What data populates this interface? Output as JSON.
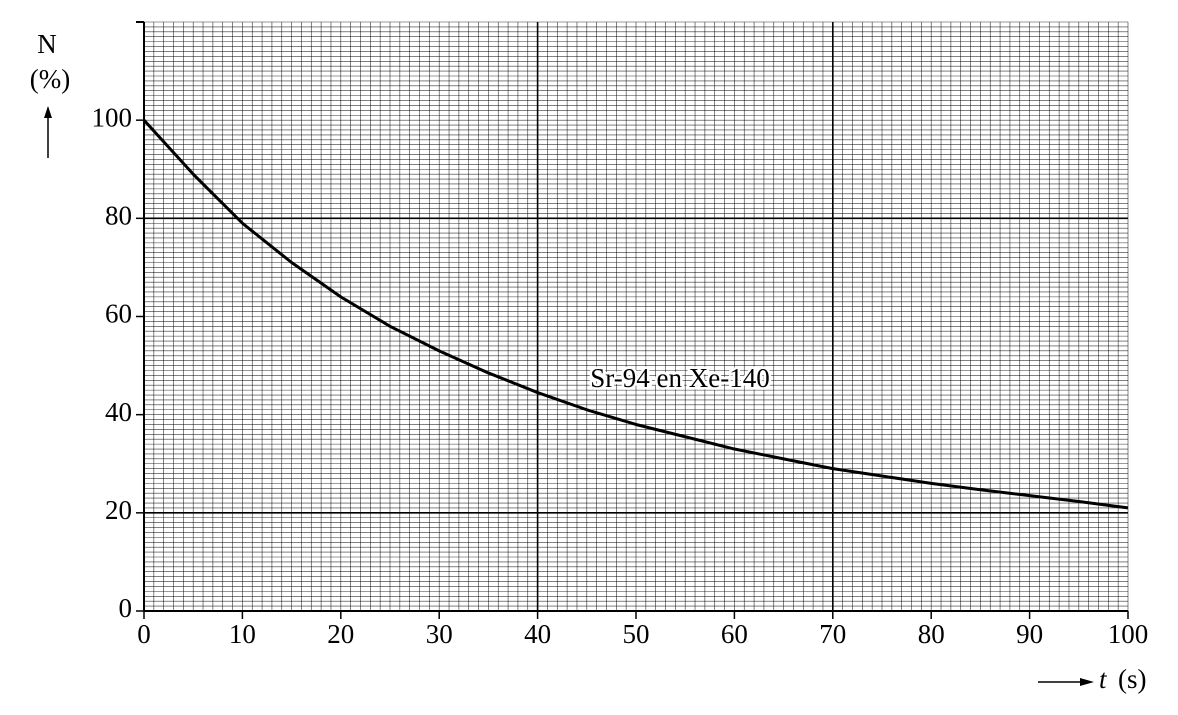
{
  "chart_data": {
    "type": "line",
    "ylabel": "N",
    "yunit": "(%)",
    "xlabel": "t",
    "xunit": "(s)",
    "annotation": "Sr-94 en Xe-140",
    "x": [
      0,
      5,
      10,
      15,
      20,
      25,
      30,
      35,
      40,
      45,
      50,
      55,
      60,
      65,
      70,
      75,
      80,
      85,
      90,
      95,
      100
    ],
    "series": [
      {
        "color": "#000000",
        "values": [
          100,
          89,
          79,
          71,
          64,
          58,
          53,
          48.5,
          44.5,
          41,
          38,
          35.5,
          33,
          31,
          29,
          27.5,
          26,
          24.7,
          23.5,
          22.3,
          21
        ]
      }
    ],
    "xlim": [
      0,
      100
    ],
    "ylim": [
      0,
      120
    ],
    "xticks": [
      0,
      10,
      20,
      30,
      40,
      50,
      60,
      70,
      80,
      90,
      100
    ],
    "yticks": [
      0,
      20,
      40,
      60,
      80,
      100
    ],
    "grid": true,
    "minor_grid_step": 1,
    "highlight_grid": {
      "x": [
        40,
        70
      ],
      "y": [
        20,
        80
      ]
    }
  }
}
